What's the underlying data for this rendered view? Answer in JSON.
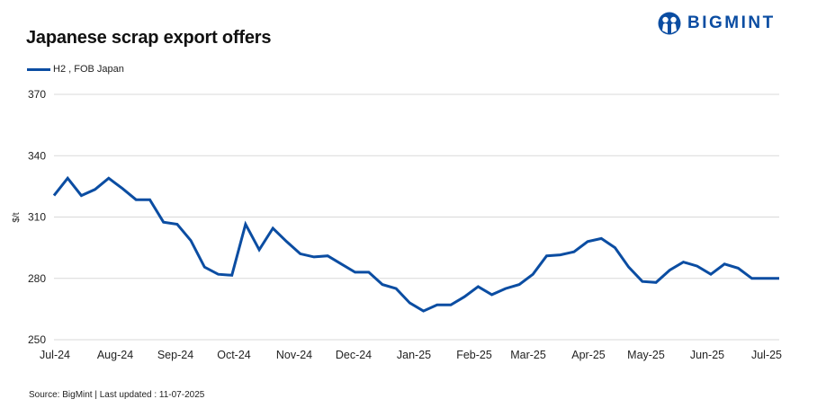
{
  "header": {
    "title": "Japanese scrap export offers",
    "logo_text": "BIGMINT",
    "logo_icon": "bigmint-people-icon"
  },
  "legend": {
    "items": [
      {
        "label": "H2 , FOB Japan",
        "color": "#0b4da2"
      }
    ]
  },
  "footer": {
    "source": "Source: BigMint  | Last updated : 11-07-2025"
  },
  "chart_data": {
    "type": "line",
    "title": "Japanese scrap export offers",
    "xlabel": "",
    "ylabel": "$/t",
    "ylim": [
      250,
      370
    ],
    "yticks": [
      250,
      280,
      310,
      340,
      370
    ],
    "grid": true,
    "legend_position": "top-left",
    "x_tick_labels": [
      "Jul-24",
      "Aug-24",
      "Sep-24",
      "Oct-24",
      "Nov-24",
      "Dec-24",
      "Jan-25",
      "Feb-25",
      "Mar-25",
      "Apr-25",
      "May-25",
      "Jun-25",
      "Jul-25"
    ],
    "series": [
      {
        "name": "H2 , FOB Japan",
        "color": "#0b4da2",
        "values": [
          320.5,
          329,
          320.5,
          323.5,
          329,
          324,
          318.5,
          318.5,
          307.5,
          306.5,
          298.5,
          285.5,
          282,
          281.5,
          306.5,
          294,
          304.5,
          298,
          292,
          290.5,
          291,
          287,
          283,
          283,
          277,
          275,
          268,
          264,
          267,
          267,
          271,
          276,
          272,
          275,
          277,
          282,
          291,
          291.5,
          293,
          298,
          299.5,
          295,
          285.5,
          278.5,
          278,
          284,
          288,
          286,
          282,
          287,
          285,
          280,
          280,
          280
        ]
      }
    ]
  }
}
